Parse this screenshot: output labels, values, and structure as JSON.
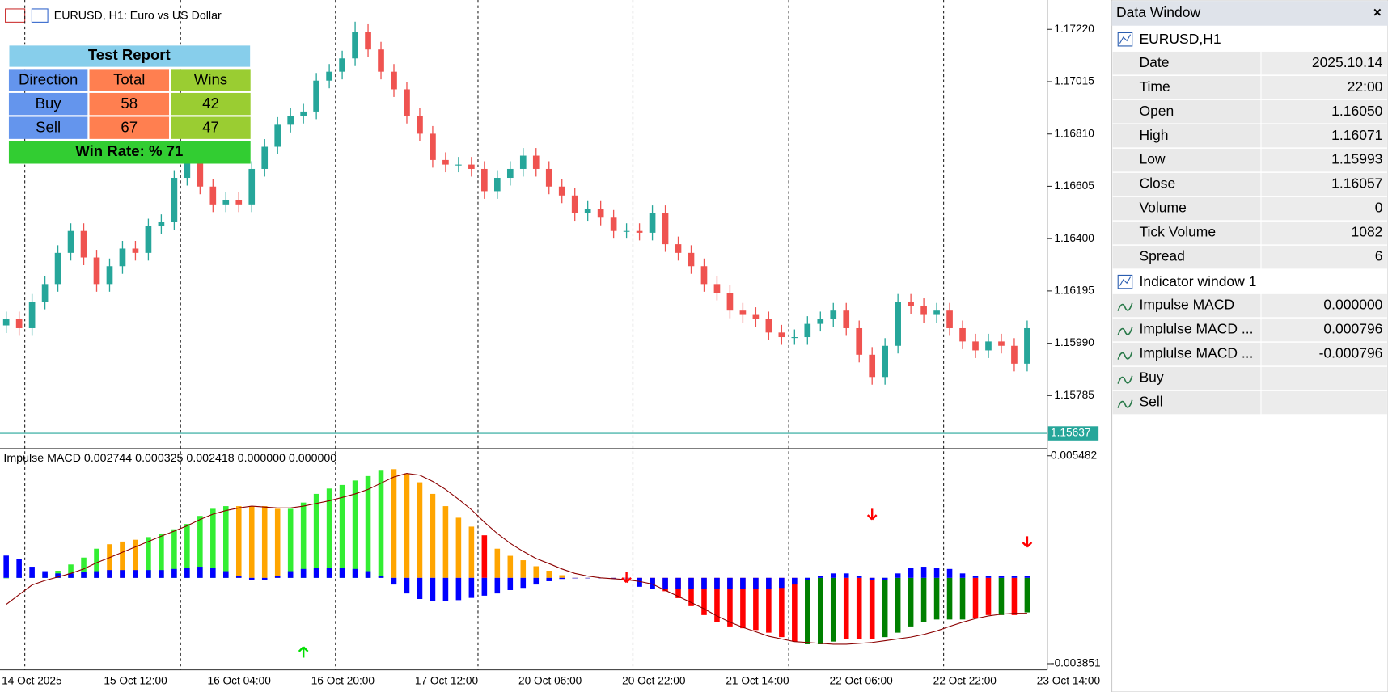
{
  "header": {
    "symbol": "EURUSD, H1:  Euro vs US Dollar"
  },
  "chart_data": [
    {
      "type": "candlestick",
      "up_color": "#26a69a",
      "down_color": "#ef5350",
      "price_line_color": "#26a69a",
      "ylim": [
        1.15584,
        1.17321
      ],
      "yticks": [
        1.15785,
        {
          "value": 1.1599,
          "label": "1.15990"
        },
        1.16195,
        {
          "value": 1.164,
          "label": "1.16400"
        },
        1.16605,
        {
          "value": 1.1681,
          "label": "1.16810"
        },
        1.17015,
        {
          "value": 1.1722,
          "label": "1.17220"
        }
      ],
      "last_price": 1.15637,
      "xtick_labels": [
        "14 Oct 2025",
        "15 Oct 12:00",
        "16 Oct 04:00",
        "16 Oct 20:00",
        "17 Oct 12:00",
        "20 Oct 06:00",
        "20 Oct 22:00",
        "21 Oct 14:00",
        "22 Oct 06:00",
        "22 Oct 22:00",
        "23 Oct 14:00"
      ],
      "open": [
        1.1606,
        1.16084,
        1.16049,
        1.16153,
        1.16222,
        1.16344,
        1.1643,
        1.16326,
        1.16222,
        1.16292,
        1.16361,
        1.16344,
        1.16448,
        1.16465,
        1.16638,
        1.16708,
        1.16604,
        1.16534,
        1.16552,
        1.16534,
        1.16673,
        1.1676,
        1.16846,
        1.16881,
        1.16898,
        1.17019,
        1.17054,
        1.17106,
        1.1721,
        1.17141,
        1.17054,
        1.16985,
        1.16881,
        1.16811,
        1.16708,
        1.1669,
        1.1669,
        1.16673,
        1.16586,
        1.16638,
        1.16673,
        1.16725,
        1.16673,
        1.16604,
        1.16569,
        1.165,
        1.16517,
        1.16482,
        1.1643,
        1.1643,
        1.16423,
        1.165,
        1.16378,
        1.16344,
        1.16292,
        1.16222,
        1.16188,
        1.16118,
        1.16101,
        1.16084,
        1.16032,
        1.16014,
        1.16014,
        1.16066,
        1.16084,
        1.16118,
        1.16049,
        1.15945,
        1.15858,
        1.1598,
        1.16153,
        1.16136,
        1.16101,
        1.16118,
        1.16049,
        1.15997,
        1.15962,
        1.15997,
        1.1598,
        1.1591
      ],
      "high": [
        1.16114,
        1.16114,
        1.16183,
        1.16252,
        1.16374,
        1.1646,
        1.1646,
        1.16356,
        1.16322,
        1.16391,
        1.16391,
        1.16478,
        1.16495,
        1.16668,
        1.16738,
        1.16738,
        1.16634,
        1.16582,
        1.16582,
        1.16703,
        1.1679,
        1.16876,
        1.16911,
        1.16928,
        1.17049,
        1.17084,
        1.17136,
        1.1725,
        1.1724,
        1.17171,
        1.17084,
        1.17015,
        1.16911,
        1.16841,
        1.16738,
        1.1672,
        1.1672,
        1.16703,
        1.16668,
        1.16703,
        1.16755,
        1.16755,
        1.16703,
        1.16634,
        1.16599,
        1.16547,
        1.16547,
        1.16512,
        1.1646,
        1.1646,
        1.1653,
        1.1653,
        1.16408,
        1.16374,
        1.16322,
        1.16252,
        1.16218,
        1.16148,
        1.16131,
        1.16114,
        1.16062,
        1.16044,
        1.16096,
        1.16114,
        1.16148,
        1.16148,
        1.16079,
        1.15975,
        1.1601,
        1.16183,
        1.16183,
        1.16166,
        1.16148,
        1.16148,
        1.16079,
        1.16027,
        1.16027,
        1.16027,
        1.1601,
        1.16079
      ],
      "low": [
        1.1603,
        1.16019,
        1.16019,
        1.16123,
        1.16192,
        1.16314,
        1.16296,
        1.16192,
        1.16192,
        1.16262,
        1.16314,
        1.16314,
        1.16418,
        1.16435,
        1.16608,
        1.16574,
        1.16504,
        1.16504,
        1.16504,
        1.16504,
        1.16643,
        1.1673,
        1.16816,
        1.16851,
        1.16868,
        1.16989,
        1.17024,
        1.17076,
        1.17111,
        1.17024,
        1.16955,
        1.16851,
        1.16781,
        1.16678,
        1.1666,
        1.1666,
        1.16643,
        1.16556,
        1.16556,
        1.16608,
        1.16643,
        1.16643,
        1.16574,
        1.16539,
        1.1647,
        1.1647,
        1.16452,
        1.164,
        1.164,
        1.16393,
        1.16393,
        1.16348,
        1.16314,
        1.16262,
        1.16192,
        1.16158,
        1.16088,
        1.16071,
        1.16054,
        1.16002,
        1.15984,
        1.15984,
        1.15984,
        1.16036,
        1.16054,
        1.16019,
        1.15915,
        1.15828,
        1.15828,
        1.1595,
        1.16106,
        1.16071,
        1.16071,
        1.16019,
        1.15967,
        1.15932,
        1.15932,
        1.1595,
        1.1588,
        1.1588
      ],
      "close": [
        1.16084,
        1.16049,
        1.16153,
        1.16222,
        1.16344,
        1.1643,
        1.16326,
        1.16222,
        1.16292,
        1.16361,
        1.16344,
        1.16448,
        1.16465,
        1.16638,
        1.16708,
        1.16604,
        1.16534,
        1.16552,
        1.16534,
        1.16673,
        1.1676,
        1.16846,
        1.16881,
        1.16898,
        1.17019,
        1.17054,
        1.17106,
        1.1721,
        1.17141,
        1.17054,
        1.16985,
        1.16881,
        1.16811,
        1.16708,
        1.1669,
        1.1669,
        1.16673,
        1.16586,
        1.16638,
        1.16673,
        1.16725,
        1.16673,
        1.16604,
        1.16569,
        1.165,
        1.16517,
        1.16482,
        1.1643,
        1.1643,
        1.16423,
        1.165,
        1.16378,
        1.16344,
        1.16292,
        1.16222,
        1.16188,
        1.16118,
        1.16101,
        1.16084,
        1.16032,
        1.16014,
        1.16014,
        1.16066,
        1.16084,
        1.16118,
        1.16049,
        1.15945,
        1.15858,
        1.1598,
        1.16153,
        1.16136,
        1.16101,
        1.16118,
        1.16049,
        1.15997,
        1.15962,
        1.15997,
        1.1598,
        1.1591,
        1.16049
      ]
    },
    {
      "type": "macd",
      "title": "Impulse MACD 0.002744 0.000325 0.002418 0.000000 0.000000",
      "ylim": [
        -0.003851,
        0.005482
      ],
      "yticks": [
        0.005482,
        -0.003851
      ],
      "histogram": [
        0,
        0.00012,
        0.00012,
        0.0002,
        0.00032,
        0.0006,
        0.00091,
        0.00131,
        0.00151,
        0.00163,
        0.00171,
        0.00183,
        0.00199,
        0.00218,
        0.00242,
        0.00278,
        0.0031,
        0.00322,
        0.00322,
        0.00322,
        0.00322,
        0.0031,
        0.0031,
        0.00338,
        0.00377,
        0.00401,
        0.00417,
        0.00437,
        0.00457,
        0.00481,
        0.00488,
        0.00469,
        0.00429,
        0.00377,
        0.00322,
        0.0027,
        0.0023,
        0.00191,
        0.00131,
        0.00099,
        0.00079,
        0.00052,
        0.00032,
        0.00012,
        0,
        0,
        0,
        0,
        0,
        -8e-05,
        -0.00028,
        -0.0006,
        -0.00091,
        -0.00127,
        -0.00167,
        -0.00199,
        -0.00218,
        -0.00226,
        -0.00234,
        -0.00246,
        -0.00266,
        -0.00286,
        -0.00298,
        -0.00298,
        -0.00286,
        -0.00274,
        -0.00274,
        -0.00274,
        -0.00266,
        -0.00246,
        -0.00218,
        -0.00199,
        -0.00187,
        -0.00187,
        -0.00187,
        -0.00179,
        -0.00167,
        -0.00167,
        -0.00167,
        -0.00155
      ],
      "bar_colors": [
        "#33ee33",
        "#33ee33",
        "#33ee33",
        "#33ee33",
        "#33ee33",
        "#33ee33",
        "#33ee33",
        "#33ee33",
        "#ffa500",
        "#ffa500",
        "#ffa500",
        "#33ee33",
        "#33ee33",
        "#33ee33",
        "#33ee33",
        "#33ee33",
        "#33ee33",
        "#33ee33",
        "#ffa500",
        "#ffa500",
        "#ffa500",
        "#ffa500",
        "#33ee33",
        "#33ee33",
        "#33ee33",
        "#33ee33",
        "#33ee33",
        "#33ee33",
        "#33ee33",
        "#33ee33",
        "#ffa500",
        "#ffa500",
        "#ffa500",
        "#ffa500",
        "#ffa500",
        "#ffa500",
        "#ffa500",
        "#ff0000",
        "#ffa500",
        "#ffa500",
        "#ffa500",
        "#ffa500",
        "#ffa500",
        "#ffa500",
        "#ffa500",
        "#ffa500",
        "#ffa500",
        "#ffa500",
        "#ffa500",
        "#ff0000",
        "#ff0000",
        "#ff0000",
        "#ff0000",
        "#ff0000",
        "#ff0000",
        "#ff0000",
        "#ff0000",
        "#ff0000",
        "#ff0000",
        "#ff0000",
        "#ff0000",
        "#ff0000",
        "#008000",
        "#008000",
        "#008000",
        "#ff0000",
        "#ff0000",
        "#ff0000",
        "#008000",
        "#008000",
        "#008000",
        "#008000",
        "#008000",
        "#008000",
        "#008000",
        "#ff0000",
        "#ff0000",
        "#008000",
        "#ff0000",
        "#008000"
      ],
      "blue_color": "#0000ff",
      "blue_histogram": [
        0.001,
        0.00085,
        0.0005,
        0.0003,
        0.0002,
        0.0002,
        0.00025,
        0.0003,
        0.00035,
        0.00035,
        0.00035,
        0.00035,
        0.00035,
        0.0004,
        0.00045,
        0.0005,
        0.00045,
        0.0003,
        0.0001,
        -0.0001,
        -0.0001,
        0.0001,
        0.0003,
        0.0004,
        0.00045,
        0.00045,
        0.00045,
        0.0004,
        0.0003,
        0.0001,
        -0.0003,
        -0.0007,
        -0.00095,
        -0.00105,
        -0.00105,
        -0.001,
        -0.0009,
        -0.0008,
        -0.0007,
        -0.00055,
        -0.00045,
        -0.0003,
        -0.00015,
        -5e-05,
        0,
        0,
        0,
        0,
        0,
        -0.0004,
        -0.0005,
        -0.0005,
        -0.0005,
        -0.0005,
        -0.0005,
        -0.0005,
        -0.0005,
        -0.0005,
        -0.0005,
        -0.0005,
        -0.00045,
        -0.0003,
        -0.0001,
        0.0001,
        0.0002,
        0.0002,
        0.0001,
        -0.0001,
        -0.0001,
        0.0002,
        0.00045,
        0.0005,
        0.00045,
        0.0004,
        0.0002,
        0.0001,
        0.0001,
        0.0001,
        0.0001,
        0.0001
      ],
      "signal_color": "#8b0000",
      "signal": [
        -0.00119,
        -0.00075,
        -0.00032,
        -0.00012,
        4e-05,
        0.0002,
        0.0004,
        0.00068,
        0.00091,
        0.00115,
        0.00139,
        0.00163,
        0.00187,
        0.0021,
        0.00234,
        0.00262,
        0.00286,
        0.00302,
        0.00314,
        0.00322,
        0.00318,
        0.00314,
        0.00314,
        0.00322,
        0.00334,
        0.00346,
        0.00361,
        0.00377,
        0.00397,
        0.00425,
        0.00453,
        0.00469,
        0.00461,
        0.00433,
        0.00397,
        0.00353,
        0.00306,
        0.0025,
        0.00199,
        0.00155,
        0.00119,
        0.00087,
        0.00064,
        0.0004,
        0.0002,
        8e-05,
        0,
        -4e-05,
        -8e-05,
        -0.00016,
        -0.00028,
        -0.00056,
        -0.00083,
        -0.00111,
        -0.00139,
        -0.00171,
        -0.00199,
        -0.00222,
        -0.00242,
        -0.00262,
        -0.00274,
        -0.00286,
        -0.0029,
        -0.00294,
        -0.00298,
        -0.00298,
        -0.00294,
        -0.0029,
        -0.00282,
        -0.00274,
        -0.00266,
        -0.00254,
        -0.00238,
        -0.00218,
        -0.00199,
        -0.00183,
        -0.00171,
        -0.00163,
        -0.00159,
        -0.00159
      ],
      "buy_arrows": {
        "color": "#00dd00",
        "index": [
          23
        ],
        "value": [
          -0.00334
        ]
      },
      "sell_arrows": {
        "color": "#ff0000",
        "index": [
          48,
          67,
          79
        ],
        "value": [
          4e-05,
          0.00286,
          0.00163
        ]
      }
    }
  ],
  "test_report": {
    "title": "Test Report",
    "columns": [
      "Direction",
      "Total",
      "Wins"
    ],
    "rows": [
      [
        "Buy",
        58,
        42
      ],
      [
        "Sell",
        67,
        47
      ]
    ],
    "footer": "Win Rate: %  71"
  },
  "data_window": {
    "title": "Data Window",
    "close": "×",
    "sections": [
      {
        "name": "EURUSD,H1",
        "rows": [
          {
            "label": "Date",
            "value": "2025.10.14"
          },
          {
            "label": "Time",
            "value": "22:00"
          },
          {
            "label": "Open",
            "value": "1.16050"
          },
          {
            "label": "High",
            "value": "1.16071"
          },
          {
            "label": "Low",
            "value": "1.15993"
          },
          {
            "label": "Close",
            "value": "1.16057"
          },
          {
            "label": "Volume",
            "value": "0"
          },
          {
            "label": "Tick Volume",
            "value": "1082"
          },
          {
            "label": "Spread",
            "value": "6"
          }
        ]
      },
      {
        "name": "Indicator window 1",
        "rows": [
          {
            "label": "Impulse MACD",
            "value": "0.000000"
          },
          {
            "label": "Implulse MACD ...",
            "value": "0.000796"
          },
          {
            "label": "Implulse MACD ...",
            "value": "-0.000796"
          },
          {
            "label": "Buy"
          },
          {
            "label": "Sell"
          }
        ]
      }
    ]
  }
}
